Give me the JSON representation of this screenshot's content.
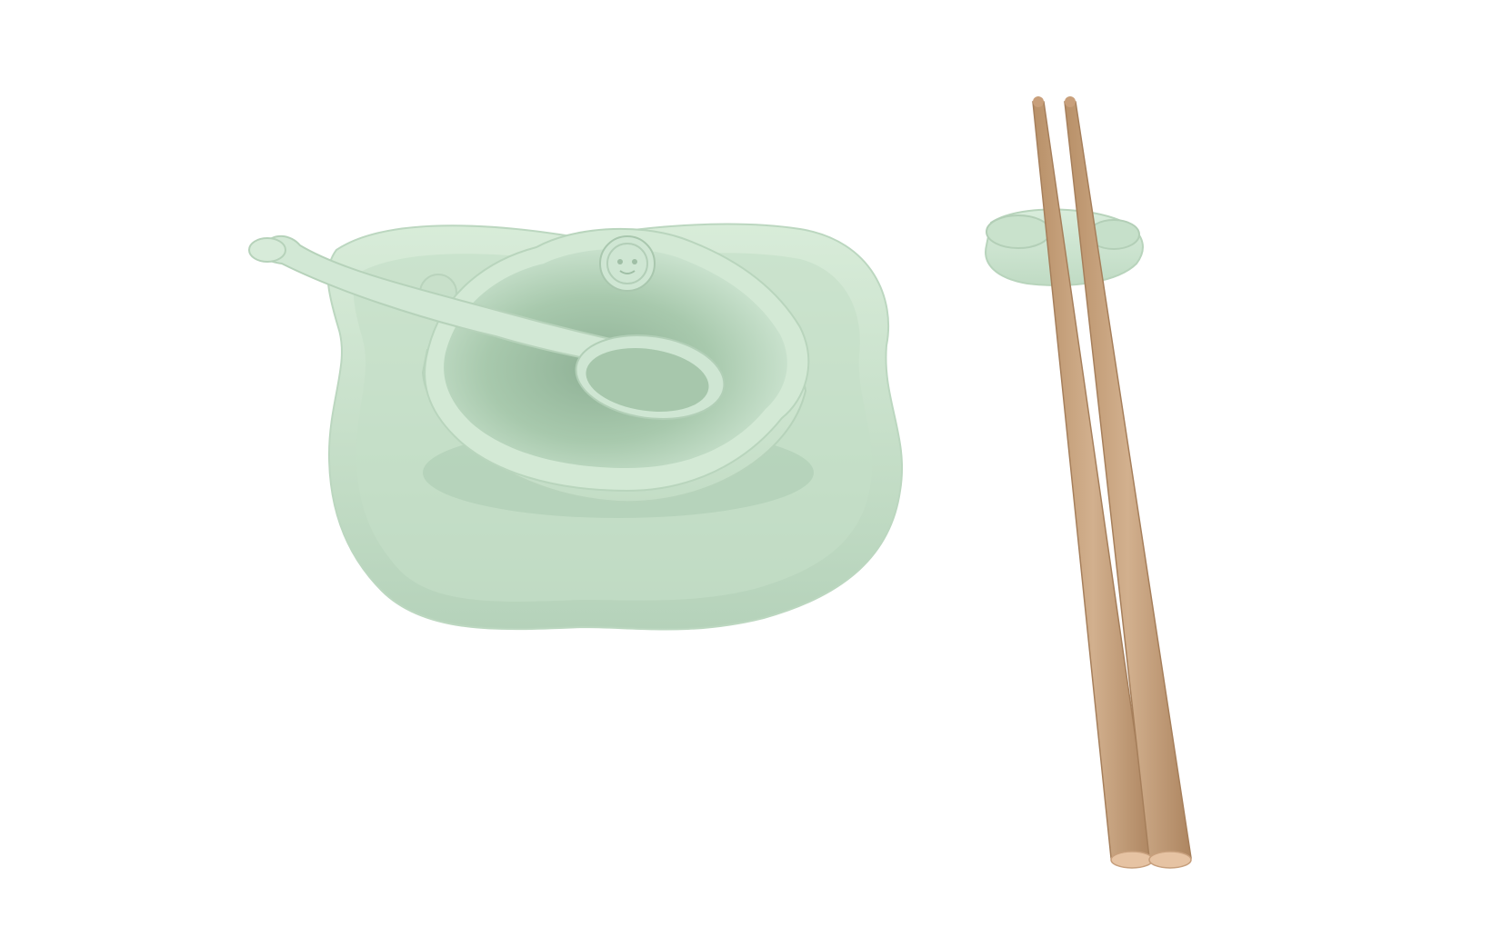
{
  "scene": {
    "background": "#ffffff",
    "objects": [
      "plate",
      "bowl",
      "spoon",
      "chopstick-rest",
      "chopsticks"
    ],
    "colors": {
      "tableware_green": "#cfe6d3",
      "tableware_shadow": "#a9c9b0",
      "bamboo": "#c8a27e",
      "bamboo_tip": "#e6c3a3"
    },
    "icons": [
      "sheep-emblem-icon"
    ]
  }
}
